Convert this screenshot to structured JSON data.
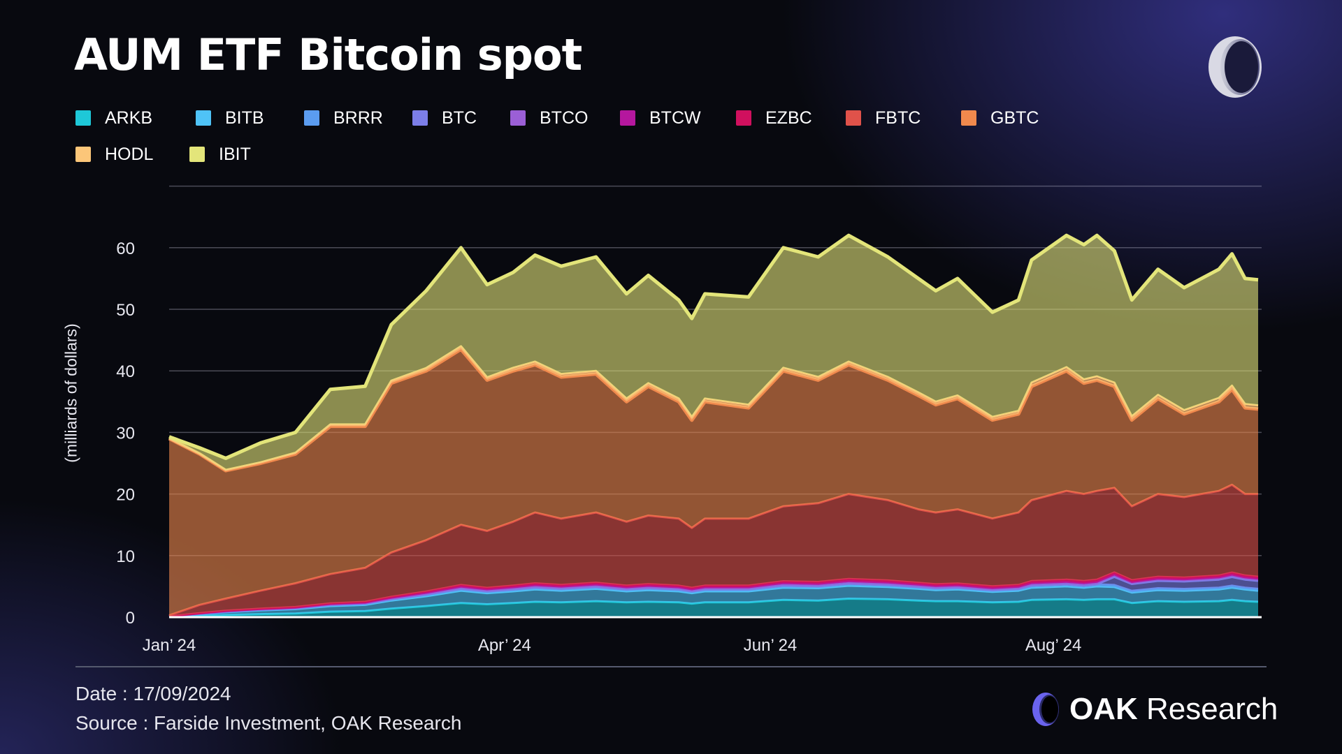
{
  "header": {
    "title": "AUM ETF Bitcoin spot"
  },
  "footer": {
    "date": "Date : 17/09/2024",
    "source": "Source : Farside Investment, OAK Research",
    "brand_bold": "OAK",
    "brand_rest": "Research"
  },
  "chart_data": {
    "type": "area",
    "stacked": true,
    "title": "AUM ETF Bitcoin spot",
    "xlabel": "",
    "ylabel": "(milliards of dollars)",
    "ylim": [
      0,
      70
    ],
    "yticks": [
      0,
      10,
      20,
      30,
      40,
      50,
      60
    ],
    "xticks": [
      {
        "label": "Jan’ 24",
        "date": "2024-01-11"
      },
      {
        "label": "Apr’ 24",
        "date": "2024-03-28"
      },
      {
        "label": "Jun’ 24",
        "date": "2024-05-28"
      },
      {
        "label": "Aug’ 24",
        "date": "2024-08-01"
      }
    ],
    "grid": true,
    "legend_position": "top",
    "x": [
      "2024-01-11",
      "2024-01-18",
      "2024-01-24",
      "2024-02-01",
      "2024-02-09",
      "2024-02-17",
      "2024-02-25",
      "2024-03-02",
      "2024-03-10",
      "2024-03-18",
      "2024-03-24",
      "2024-03-30",
      "2024-04-04",
      "2024-04-10",
      "2024-04-18",
      "2024-04-25",
      "2024-04-30",
      "2024-05-07",
      "2024-05-10",
      "2024-05-13",
      "2024-05-23",
      "2024-05-31",
      "2024-06-08",
      "2024-06-15",
      "2024-06-24",
      "2024-07-01",
      "2024-07-05",
      "2024-07-10",
      "2024-07-18",
      "2024-07-24",
      "2024-07-27",
      "2024-08-04",
      "2024-08-08",
      "2024-08-11",
      "2024-08-15",
      "2024-08-19",
      "2024-08-25",
      "2024-08-31",
      "2024-09-08",
      "2024-09-11",
      "2024-09-14",
      "2024-09-17"
    ],
    "series": [
      {
        "name": "ARKB",
        "color": "#1ec8d8",
        "values": [
          0.05,
          0.2,
          0.35,
          0.5,
          0.6,
          0.9,
          1.0,
          1.4,
          1.8,
          2.3,
          2.1,
          2.3,
          2.5,
          2.4,
          2.6,
          2.4,
          2.5,
          2.4,
          2.2,
          2.4,
          2.4,
          2.8,
          2.7,
          3.0,
          2.9,
          2.7,
          2.6,
          2.6,
          2.4,
          2.5,
          2.8,
          2.9,
          2.8,
          2.9,
          2.9,
          2.3,
          2.6,
          2.5,
          2.6,
          2.8,
          2.6,
          2.5
        ]
      },
      {
        "name": "BITB",
        "color": "#4fc3f7",
        "values": [
          0.05,
          0.3,
          0.45,
          0.6,
          0.7,
          0.9,
          1.0,
          1.3,
          1.6,
          2.0,
          1.8,
          1.9,
          2.0,
          1.9,
          2.0,
          1.8,
          1.9,
          1.8,
          1.7,
          1.8,
          1.8,
          2.0,
          2.0,
          2.1,
          2.0,
          1.9,
          1.8,
          1.9,
          1.7,
          1.8,
          2.0,
          2.1,
          2.0,
          2.1,
          2.0,
          1.7,
          1.8,
          1.8,
          1.9,
          2.0,
          1.9,
          1.8
        ]
      },
      {
        "name": "BRRR",
        "color": "#5b9cf0",
        "values": [
          0.02,
          0.05,
          0.08,
          0.1,
          0.12,
          0.15,
          0.16,
          0.2,
          0.25,
          0.3,
          0.28,
          0.3,
          0.32,
          0.3,
          0.32,
          0.3,
          0.31,
          0.3,
          0.28,
          0.3,
          0.3,
          0.33,
          0.32,
          0.34,
          0.33,
          0.31,
          0.3,
          0.3,
          0.28,
          0.29,
          0.33,
          0.34,
          0.33,
          0.34,
          0.33,
          0.28,
          0.3,
          0.29,
          0.3,
          0.32,
          0.3,
          0.3
        ]
      },
      {
        "name": "BTC",
        "color": "#7c7ee8",
        "values": [
          0,
          0,
          0,
          0,
          0,
          0,
          0,
          0,
          0,
          0,
          0,
          0,
          0,
          0,
          0,
          0,
          0,
          0,
          0,
          0,
          0,
          0,
          0,
          0,
          0,
          0,
          0,
          0,
          0,
          0,
          0,
          0,
          0,
          0,
          1.3,
          1.1,
          1.2,
          1.2,
          1.3,
          1.4,
          1.3,
          1.3
        ]
      },
      {
        "name": "BTCO",
        "color": "#9b5fd6",
        "values": [
          0.01,
          0.05,
          0.08,
          0.1,
          0.12,
          0.15,
          0.16,
          0.2,
          0.25,
          0.3,
          0.28,
          0.3,
          0.32,
          0.3,
          0.32,
          0.3,
          0.31,
          0.3,
          0.28,
          0.3,
          0.3,
          0.33,
          0.32,
          0.35,
          0.33,
          0.31,
          0.3,
          0.31,
          0.28,
          0.29,
          0.33,
          0.34,
          0.33,
          0.34,
          0.33,
          0.28,
          0.3,
          0.29,
          0.3,
          0.32,
          0.3,
          0.3
        ]
      },
      {
        "name": "BTCW",
        "color": "#b5179e",
        "values": [
          0.01,
          0.02,
          0.03,
          0.03,
          0.04,
          0.05,
          0.05,
          0.06,
          0.07,
          0.08,
          0.07,
          0.08,
          0.08,
          0.08,
          0.08,
          0.07,
          0.08,
          0.07,
          0.07,
          0.07,
          0.07,
          0.08,
          0.08,
          0.08,
          0.08,
          0.07,
          0.07,
          0.07,
          0.07,
          0.07,
          0.08,
          0.08,
          0.08,
          0.08,
          0.08,
          0.07,
          0.07,
          0.07,
          0.07,
          0.08,
          0.07,
          0.07
        ]
      },
      {
        "name": "EZBC",
        "color": "#d0105e",
        "values": [
          0.01,
          0.03,
          0.05,
          0.07,
          0.08,
          0.1,
          0.12,
          0.15,
          0.2,
          0.25,
          0.23,
          0.25,
          0.28,
          0.27,
          0.28,
          0.26,
          0.27,
          0.26,
          0.24,
          0.26,
          0.26,
          0.3,
          0.3,
          0.33,
          0.32,
          0.3,
          0.29,
          0.3,
          0.28,
          0.29,
          0.32,
          0.33,
          0.32,
          0.33,
          0.33,
          0.28,
          0.3,
          0.29,
          0.3,
          0.32,
          0.3,
          0.3
        ]
      },
      {
        "name": "FBTC",
        "color": "#e0524a",
        "values": [
          0.15,
          1.35,
          1.96,
          2.9,
          3.84,
          4.75,
          5.51,
          7.19,
          8.33,
          9.77,
          9.24,
          10.37,
          11.5,
          10.75,
          11.4,
          10.37,
          11.13,
          10.87,
          9.73,
          10.87,
          10.87,
          12.16,
          12.78,
          13.8,
          13.04,
          11.91,
          11.64,
          12.02,
          11.01,
          11.76,
          13.14,
          14.41,
          14.14,
          14.41,
          13.73,
          12.01,
          13.43,
          13.06,
          13.73,
          14.26,
          13.23,
          13.43
        ]
      },
      {
        "name": "GBTC",
        "color": "#f0894d",
        "values": [
          28.7,
          24.5,
          20.8,
          20.7,
          21,
          24,
          23,
          27.5,
          27.5,
          28.5,
          24.5,
          24.5,
          24,
          23,
          22.5,
          19.5,
          21,
          19,
          17.5,
          19,
          18,
          22,
          20,
          21,
          19.5,
          18.5,
          17.5,
          18,
          16,
          16,
          18.5,
          19.5,
          18,
          18,
          16.5,
          14,
          15.5,
          13.5,
          14.5,
          15.5,
          14,
          13.8
        ]
      },
      {
        "name": "HODL",
        "color": "#fcc679",
        "values": [
          0.01,
          0.05,
          0.1,
          0.15,
          0.2,
          0.3,
          0.3,
          0.4,
          0.45,
          0.5,
          0.45,
          0.5,
          0.5,
          0.5,
          0.5,
          0.5,
          0.5,
          0.5,
          0.5,
          0.5,
          0.5,
          0.5,
          0.5,
          0.5,
          0.5,
          0.5,
          0.5,
          0.5,
          0.5,
          0.5,
          0.6,
          0.6,
          0.6,
          0.6,
          0.6,
          0.6,
          0.6,
          0.6,
          0.6,
          0.6,
          0.6,
          0.6
        ]
      },
      {
        "name": "IBIT",
        "color": "#e3e57a",
        "values": [
          0.29,
          0.95,
          1.9,
          3.15,
          3.3,
          5.7,
          6.2,
          9.1,
          12.55,
          16,
          15.05,
          15.5,
          17.3,
          17.5,
          18.5,
          17,
          17.5,
          16,
          16,
          17,
          17.5,
          19.5,
          19.5,
          20.5,
          19.5,
          18.5,
          18,
          19,
          17,
          18,
          19.9,
          21.4,
          21.9,
          22.9,
          21.4,
          18.9,
          20.4,
          19.9,
          20.9,
          21.4,
          20.4,
          20.4
        ]
      }
    ]
  }
}
